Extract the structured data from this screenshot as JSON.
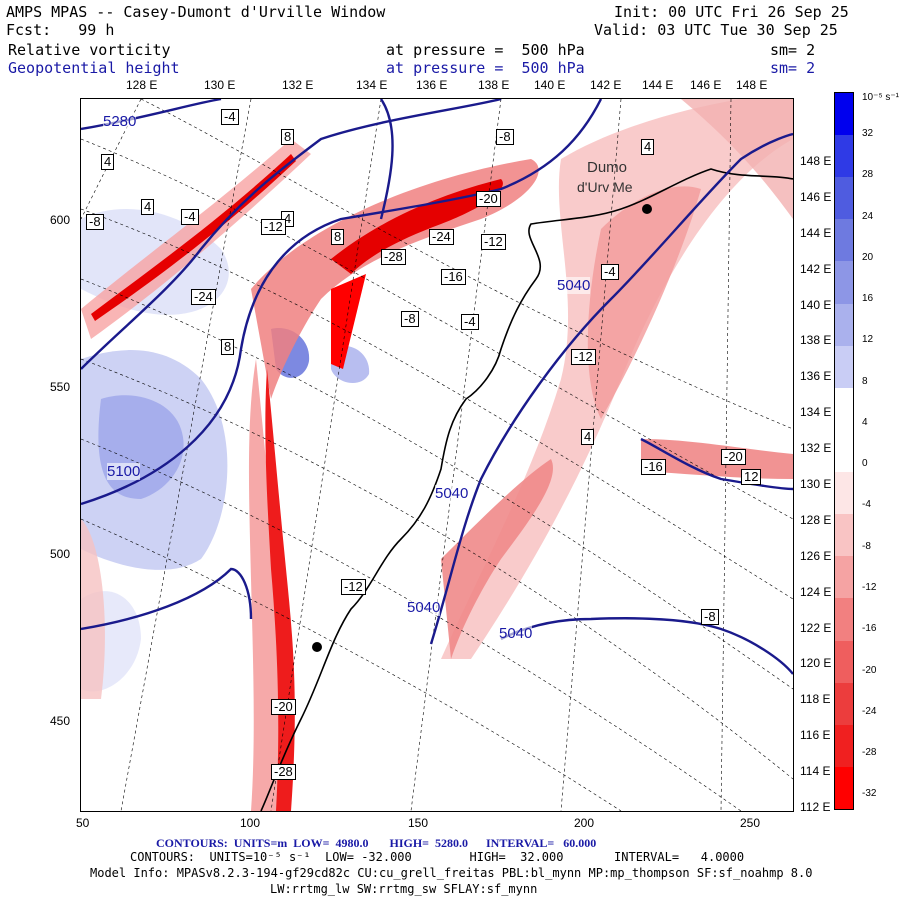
{
  "header": {
    "title": "AMPS MPAS -- Casey-Dumont d'Urville Window",
    "fcst": "Fcst:   99 h",
    "init": "Init: 00 UTC Fri 26 Sep 25",
    "valid": "Valid: 03 UTC Tue 30 Sep 25",
    "field1": "Relative vorticity",
    "field1_level": "at pressure =  500 hPa",
    "field1_sm": "sm= 2",
    "field2": "Geopotential height",
    "field2_level": "at pressure =  500 hPa",
    "field2_sm": "sm= 2"
  },
  "colors": {
    "positive_max": "#0000ee",
    "negative_max": "#ff0000",
    "contour_height": "#1a1a8c"
  },
  "map": {
    "lon_labels_top": [
      "128 E",
      "130 E",
      "132 E",
      "134 E",
      "136 E",
      "138 E",
      "140 E",
      "142 E",
      "144 E",
      "146 E",
      "148 E"
    ],
    "y_axis_labels": [
      "600",
      "550",
      "500",
      "450"
    ],
    "x_axis_labels": [
      "50",
      "100",
      "150",
      "200",
      "250"
    ],
    "lat_labels_right": [
      "148 E",
      "146 E",
      "144 E",
      "142 E",
      "140 E",
      "138 E",
      "136 E",
      "134 E",
      "132 E",
      "130 E",
      "128 E",
      "126 E",
      "124 E",
      "122 E",
      "120 E",
      "118 E",
      "116 E",
      "114 E",
      "112 E"
    ],
    "station_label_1": "Dumo",
    "station_label_2": "d'Urv Me",
    "height_labels": [
      "5280",
      "5040",
      "5040",
      "5040",
      "5040",
      "5100"
    ],
    "vorticity_boxes": [
      "-4",
      "8",
      "4",
      "8",
      "-8",
      "4",
      "4",
      "-4",
      "-8",
      "-20",
      "-24",
      "-12",
      "-28",
      "-16",
      "-4",
      "-8",
      "-12",
      "-16",
      "-20",
      "-12",
      "-24",
      "8",
      "12",
      "4",
      "-8",
      "-4",
      "4",
      "-12",
      "-20",
      "-28"
    ]
  },
  "colorbar": {
    "unit": "10⁻⁵ s⁻¹",
    "ticks": [
      "32",
      "28",
      "24",
      "20",
      "16",
      "12",
      "8",
      "4",
      "0",
      "-4",
      "-8",
      "-12",
      "-16",
      "-20",
      "-24",
      "-28",
      "-32"
    ]
  },
  "footer": {
    "contours1": "CONTOURS:  UNITS=m  LOW=  4980.0       HIGH=  5280.0      INTERVAL=   60.000",
    "contours2": "CONTOURS:  UNITS=10⁻⁵ s⁻¹  LOW= -32.000        HIGH=  32.000       INTERVAL=   4.0000",
    "model_info": "Model Info: MPASv8.2.3-194-gf29cd82c CU:cu_grell_freitas PBL:bl_mynn MP:mp_thompson SF:sf_noahmp 8.0",
    "model_info2": "LW:rrtmg_lw SW:rrtmg_sw SFLAY:sf_mynn"
  }
}
